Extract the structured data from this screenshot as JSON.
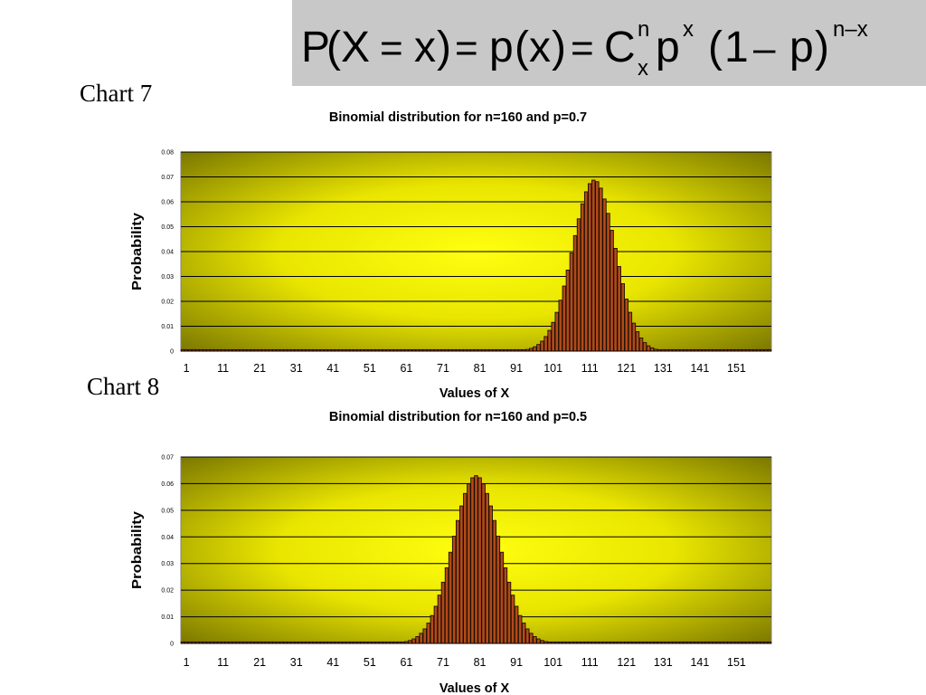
{
  "formula": {
    "P": "P",
    "X": "X",
    "x1": "x",
    "p": "p",
    "x2": "x",
    "C": "C",
    "n_sup": "n",
    "x_sub": "x",
    "p2": "p",
    "x_sup": "x",
    "one": "1",
    "p3": "p",
    "nx_sup": "n–x"
  },
  "labels": {
    "chart7": "Chart 7",
    "chart8": "Chart 8"
  },
  "chart_data": [
    {
      "type": "bar",
      "title": "Binomial distribution for n=160 and p=0.7",
      "xlabel": "Values of X",
      "ylabel": "Probability",
      "n": 160,
      "p": 0.7,
      "x_range": [
        0,
        160
      ],
      "x_ticks": [
        "1",
        "11",
        "21",
        "31",
        "41",
        "51",
        "61",
        "71",
        "81",
        "91",
        "101",
        "111",
        "121",
        "131",
        "141",
        "151"
      ],
      "ylim": [
        0,
        0.08
      ],
      "y_ticks": [
        "0",
        "0.01",
        "0.02",
        "0.03",
        "0.04",
        "0.05",
        "0.06",
        "0.07",
        "0.08"
      ],
      "grid": true,
      "values_formula": "P(X=x) = C(160,x) 0.7^x 0.3^(160-x), x = 0..160"
    },
    {
      "type": "bar",
      "title": "Binomial distribution for n=160 and p=0.5",
      "xlabel": "Values of X",
      "ylabel": "Probability",
      "n": 160,
      "p": 0.5,
      "x_range": [
        0,
        160
      ],
      "x_ticks": [
        "1",
        "11",
        "21",
        "31",
        "41",
        "51",
        "61",
        "71",
        "81",
        "91",
        "101",
        "111",
        "121",
        "131",
        "141",
        "151"
      ],
      "ylim": [
        0,
        0.07
      ],
      "y_ticks": [
        "0",
        "0.01",
        "0.02",
        "0.03",
        "0.04",
        "0.05",
        "0.06",
        "0.07"
      ],
      "grid": true,
      "values_formula": "P(X=x) = C(160,x) 0.5^x 0.5^(160-x), x = 0..160"
    }
  ]
}
